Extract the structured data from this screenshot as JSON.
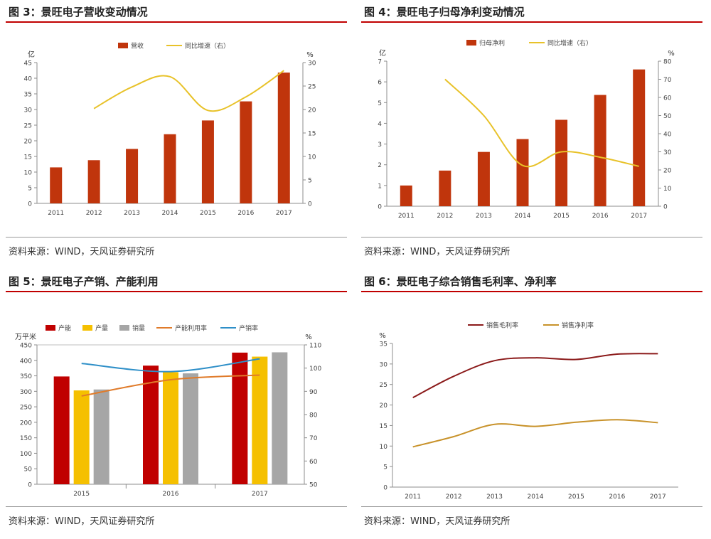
{
  "charts": [
    {
      "title": "图 3：景旺电子营收变动情况",
      "source": "资料来源：WIND，天风证券研究所",
      "chart_data": {
        "type": "bar",
        "categories": [
          "2011",
          "2012",
          "2013",
          "2014",
          "2015",
          "2016",
          "2017"
        ],
        "series": [
          {
            "name": "营收",
            "type": "bar",
            "axis": "left",
            "values": [
              11.5,
              13.8,
              17.4,
              22.1,
              26.5,
              32.6,
              41.8
            ],
            "color": "#c0350c"
          },
          {
            "name": "同比增速（右）",
            "type": "line",
            "axis": "right",
            "values": [
              null,
              20.2,
              24.8,
              27.0,
              19.8,
              22.7,
              28.3
            ],
            "color": "#e8c229"
          }
        ],
        "left_unit": "亿",
        "right_unit": "%",
        "ylim_left": [
          0,
          45
        ],
        "yticks_left": [
          0,
          5,
          10,
          15,
          20,
          25,
          30,
          35,
          40,
          45
        ],
        "ylim_right": [
          0,
          30
        ],
        "yticks_right": [
          0,
          5,
          10,
          15,
          20,
          25,
          30
        ],
        "legend": "top-center",
        "grid": false
      }
    },
    {
      "title": "图 4：景旺电子归母净利变动情况",
      "source": "资料来源：WIND，天风证券研究所",
      "chart_data": {
        "type": "bar",
        "categories": [
          "2011",
          "2012",
          "2013",
          "2014",
          "2015",
          "2016",
          "2017"
        ],
        "series": [
          {
            "name": "归母净利",
            "type": "bar",
            "axis": "left",
            "values": [
              1.0,
              1.72,
              2.62,
              3.24,
              4.17,
              5.37,
              6.6
            ],
            "color": "#c0350c"
          },
          {
            "name": "同比增速（右）",
            "type": "line",
            "axis": "right",
            "values": [
              null,
              70.0,
              50.0,
              22.5,
              30.0,
              27.0,
              22.0
            ],
            "color": "#e8c229"
          }
        ],
        "left_unit": "亿",
        "right_unit": "%",
        "ylim_left": [
          0,
          7
        ],
        "yticks_left": [
          0,
          1,
          2,
          3,
          4,
          5,
          6,
          7
        ],
        "ylim_right": [
          0,
          80
        ],
        "yticks_right": [
          0,
          10,
          20,
          30,
          40,
          50,
          60,
          70,
          80
        ],
        "legend": "top-center",
        "grid": false
      }
    },
    {
      "title": "图 5：景旺电子产销、产能利用",
      "source": "资料来源：WIND，天风证券研究所",
      "chart_data": {
        "type": "bar",
        "categories": [
          "2015",
          "2016",
          "2017"
        ],
        "series": [
          {
            "name": "产能",
            "type": "bar",
            "axis": "left",
            "values": [
              348,
              383,
              425
            ],
            "color": "#c00000"
          },
          {
            "name": "产量",
            "type": "bar",
            "axis": "left",
            "values": [
              303,
              362,
              412
            ],
            "color": "#f5c000"
          },
          {
            "name": "销量",
            "type": "bar",
            "axis": "left",
            "values": [
              306,
              358,
              426
            ],
            "color": "#a6a6a6"
          },
          {
            "name": "产能利用率",
            "type": "line",
            "axis": "right",
            "values": [
              88,
              95,
              97
            ],
            "color": "#e07b2a"
          },
          {
            "name": "产销率",
            "type": "line",
            "axis": "right",
            "values": [
              102,
              98.5,
              104
            ],
            "color": "#2e8fc8"
          }
        ],
        "left_unit": "万平米",
        "right_unit": "%",
        "ylim_left": [
          0,
          450
        ],
        "yticks_left": [
          0,
          50,
          100,
          150,
          200,
          250,
          300,
          350,
          400,
          450
        ],
        "ylim_right": [
          50,
          110
        ],
        "yticks_right": [
          50,
          60,
          70,
          80,
          90,
          100,
          110
        ],
        "legend": "top",
        "grid": false
      }
    },
    {
      "title": "图 6：景旺电子综合销售毛利率、净利率",
      "source": "资料来源：WIND，天风证券研究所",
      "chart_data": {
        "type": "line",
        "categories": [
          "2011",
          "2012",
          "2013",
          "2014",
          "2015",
          "2016",
          "2017"
        ],
        "series": [
          {
            "name": "销售毛利率",
            "values": [
              21.8,
              27.0,
              30.8,
              31.5,
              31.1,
              32.4,
              32.5
            ],
            "color": "#8b1a1a"
          },
          {
            "name": "销售净利率",
            "values": [
              9.8,
              12.3,
              15.3,
              14.8,
              15.8,
              16.4,
              15.7
            ],
            "color": "#c8922a"
          }
        ],
        "left_unit": "%",
        "ylim": [
          0,
          35
        ],
        "yticks": [
          0,
          5,
          10,
          15,
          20,
          25,
          30,
          35
        ],
        "legend": "top-center",
        "grid": false
      }
    }
  ]
}
